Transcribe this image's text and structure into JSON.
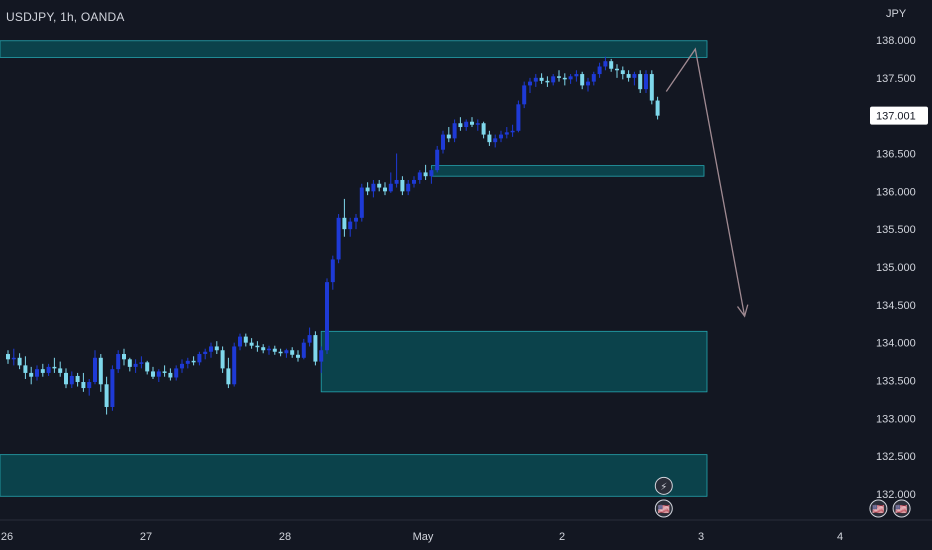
{
  "header": {
    "symbol_title": "USDJPY, 1h, OANDA",
    "currency": "JPY"
  },
  "chart_data": {
    "type": "candlestick",
    "symbol": "USDJPY",
    "timeframe": "1h",
    "broker": "OANDA",
    "y_ticks": [
      "138.000",
      "137.500",
      "137.000",
      "136.500",
      "136.000",
      "135.500",
      "135.000",
      "134.500",
      "134.000",
      "133.500",
      "133.000",
      "132.500",
      "132.000"
    ],
    "ylim": [
      131.75,
      138.35
    ],
    "current_price": "137.001",
    "x_ticks": [
      "26",
      "27",
      "28",
      "May",
      "2",
      "3",
      "4"
    ],
    "x_tick_index": [
      0,
      24,
      48,
      72,
      96,
      120,
      144
    ],
    "zones": [
      {
        "name": "top-resistance-zone",
        "i_start": -2,
        "i_end": 122,
        "y_low": 137.77,
        "y_high": 137.99
      },
      {
        "name": "mid-demand-zone",
        "i_start": 73,
        "i_end": 120,
        "y_low": 136.2,
        "y_high": 136.34
      },
      {
        "name": "lower-demand-zone",
        "i_start": 54,
        "i_end": 122,
        "y_low": 133.35,
        "y_high": 134.15
      },
      {
        "name": "bottom-demand-zone",
        "i_start": -2,
        "i_end": 122,
        "y_low": 131.97,
        "y_high": 132.52
      }
    ],
    "projection_path": [
      {
        "i": 113.5,
        "y": 137.32
      },
      {
        "i": 118.5,
        "y": 137.88
      },
      {
        "i": 127,
        "y": 134.35
      }
    ],
    "colors": {
      "up": "#1e3ad6",
      "down": "#7fd8ec",
      "zone_fill": "#0b4a52",
      "zone_border": "#25a6b0",
      "arrow": "#a08a92",
      "background": "#131722",
      "price_tag": "#ffffff"
    },
    "candles_ohlc": [
      [
        133.85,
        133.9,
        133.72,
        133.78
      ],
      [
        133.78,
        133.92,
        133.7,
        133.8
      ],
      [
        133.8,
        133.86,
        133.65,
        133.7
      ],
      [
        133.7,
        133.82,
        133.52,
        133.6
      ],
      [
        133.6,
        133.68,
        133.45,
        133.55
      ],
      [
        133.55,
        133.7,
        133.5,
        133.65
      ],
      [
        133.65,
        133.72,
        133.55,
        133.6
      ],
      [
        133.6,
        133.72,
        133.56,
        133.68
      ],
      [
        133.68,
        133.8,
        133.6,
        133.66
      ],
      [
        133.66,
        133.75,
        133.55,
        133.6
      ],
      [
        133.6,
        133.66,
        133.4,
        133.45
      ],
      [
        133.45,
        133.62,
        133.4,
        133.56
      ],
      [
        133.56,
        133.6,
        133.42,
        133.48
      ],
      [
        133.48,
        133.6,
        133.35,
        133.4
      ],
      [
        133.4,
        133.52,
        133.3,
        133.48
      ],
      [
        133.48,
        133.9,
        133.45,
        133.8
      ],
      [
        133.8,
        133.85,
        133.35,
        133.45
      ],
      [
        133.45,
        133.55,
        133.05,
        133.15
      ],
      [
        133.15,
        133.7,
        133.1,
        133.65
      ],
      [
        133.65,
        133.9,
        133.6,
        133.85
      ],
      [
        133.85,
        133.92,
        133.7,
        133.78
      ],
      [
        133.78,
        133.8,
        133.62,
        133.68
      ],
      [
        133.68,
        133.78,
        133.6,
        133.72
      ],
      [
        133.72,
        133.82,
        133.66,
        133.74
      ],
      [
        133.74,
        133.76,
        133.58,
        133.62
      ],
      [
        133.62,
        133.68,
        133.52,
        133.55
      ],
      [
        133.55,
        133.65,
        133.48,
        133.62
      ],
      [
        133.62,
        133.7,
        133.55,
        133.6
      ],
      [
        133.6,
        133.66,
        133.5,
        133.54
      ],
      [
        133.54,
        133.7,
        133.5,
        133.66
      ],
      [
        133.66,
        133.78,
        133.6,
        133.72
      ],
      [
        133.72,
        133.8,
        133.66,
        133.76
      ],
      [
        133.76,
        133.82,
        133.7,
        133.74
      ],
      [
        133.74,
        133.88,
        133.7,
        133.85
      ],
      [
        133.85,
        133.92,
        133.78,
        133.88
      ],
      [
        133.88,
        134.0,
        133.8,
        133.95
      ],
      [
        133.95,
        134.02,
        133.85,
        133.9
      ],
      [
        133.9,
        133.95,
        133.6,
        133.66
      ],
      [
        133.66,
        133.8,
        133.4,
        133.45
      ],
      [
        133.45,
        134.0,
        133.42,
        133.95
      ],
      [
        133.95,
        134.12,
        133.9,
        134.08
      ],
      [
        134.08,
        134.12,
        133.95,
        134.0
      ],
      [
        134.0,
        134.06,
        133.92,
        133.96
      ],
      [
        133.96,
        134.02,
        133.88,
        133.94
      ],
      [
        133.94,
        133.98,
        133.86,
        133.9
      ],
      [
        133.9,
        133.96,
        133.84,
        133.92
      ],
      [
        133.92,
        133.96,
        133.84,
        133.88
      ],
      [
        133.88,
        133.92,
        133.82,
        133.86
      ],
      [
        133.86,
        133.92,
        133.8,
        133.9
      ],
      [
        133.9,
        133.94,
        133.8,
        133.84
      ],
      [
        133.84,
        133.9,
        133.75,
        133.8
      ],
      [
        133.8,
        134.05,
        133.78,
        134.0
      ],
      [
        134.0,
        134.2,
        133.95,
        134.1
      ],
      [
        134.1,
        134.15,
        133.7,
        133.75
      ],
      [
        133.75,
        133.95,
        133.6,
        133.9
      ],
      [
        133.9,
        134.85,
        133.85,
        134.8
      ],
      [
        134.8,
        135.15,
        134.7,
        135.1
      ],
      [
        135.1,
        135.7,
        135.05,
        135.65
      ],
      [
        135.65,
        135.9,
        135.4,
        135.5
      ],
      [
        135.5,
        135.65,
        135.4,
        135.6
      ],
      [
        135.6,
        135.7,
        135.5,
        135.65
      ],
      [
        135.65,
        136.1,
        135.6,
        136.05
      ],
      [
        136.05,
        136.12,
        135.95,
        136.0
      ],
      [
        136.0,
        136.15,
        135.92,
        136.1
      ],
      [
        136.1,
        136.15,
        136.0,
        136.05
      ],
      [
        136.05,
        136.12,
        135.95,
        136.0
      ],
      [
        136.0,
        136.25,
        135.98,
        136.1
      ],
      [
        136.1,
        136.5,
        136.05,
        136.15
      ],
      [
        136.15,
        136.2,
        135.95,
        136.0
      ],
      [
        136.0,
        136.15,
        135.95,
        136.1
      ],
      [
        136.1,
        136.2,
        136.05,
        136.15
      ],
      [
        136.15,
        136.28,
        136.1,
        136.25
      ],
      [
        136.25,
        136.35,
        136.15,
        136.2
      ],
      [
        136.2,
        136.3,
        136.1,
        136.28
      ],
      [
        136.28,
        136.6,
        136.25,
        136.55
      ],
      [
        136.55,
        136.8,
        136.5,
        136.75
      ],
      [
        136.75,
        136.85,
        136.65,
        136.7
      ],
      [
        136.7,
        136.95,
        136.65,
        136.9
      ],
      [
        136.9,
        136.98,
        136.8,
        136.85
      ],
      [
        136.85,
        136.95,
        136.8,
        136.92
      ],
      [
        136.92,
        136.98,
        136.85,
        136.88
      ],
      [
        136.88,
        136.95,
        136.8,
        136.9
      ],
      [
        136.9,
        136.92,
        136.7,
        136.75
      ],
      [
        136.75,
        136.8,
        136.6,
        136.65
      ],
      [
        136.65,
        136.75,
        136.58,
        136.7
      ],
      [
        136.7,
        136.8,
        136.65,
        136.75
      ],
      [
        136.75,
        136.85,
        136.7,
        136.78
      ],
      [
        136.78,
        136.88,
        136.72,
        136.8
      ],
      [
        136.8,
        137.2,
        136.78,
        137.15
      ],
      [
        137.15,
        137.45,
        137.1,
        137.4
      ],
      [
        137.4,
        137.5,
        137.3,
        137.45
      ],
      [
        137.45,
        137.55,
        137.38,
        137.5
      ],
      [
        137.5,
        137.56,
        137.42,
        137.46
      ],
      [
        137.46,
        137.52,
        137.38,
        137.44
      ],
      [
        137.44,
        137.55,
        137.4,
        137.52
      ],
      [
        137.52,
        137.6,
        137.45,
        137.5
      ],
      [
        137.5,
        137.56,
        137.4,
        137.48
      ],
      [
        137.48,
        137.55,
        137.42,
        137.52
      ],
      [
        137.52,
        137.6,
        137.45,
        137.55
      ],
      [
        137.55,
        137.58,
        137.35,
        137.4
      ],
      [
        137.4,
        137.5,
        137.32,
        137.45
      ],
      [
        137.45,
        137.58,
        137.4,
        137.55
      ],
      [
        137.55,
        137.7,
        137.5,
        137.65
      ],
      [
        137.65,
        137.78,
        137.6,
        137.72
      ],
      [
        137.72,
        137.75,
        137.58,
        137.62
      ],
      [
        137.62,
        137.68,
        137.5,
        137.6
      ],
      [
        137.6,
        137.65,
        137.48,
        137.55
      ],
      [
        137.55,
        137.6,
        137.45,
        137.5
      ],
      [
        137.5,
        137.58,
        137.4,
        137.55
      ],
      [
        137.55,
        137.6,
        137.3,
        137.35
      ],
      [
        137.35,
        137.6,
        137.3,
        137.55
      ],
      [
        137.55,
        137.6,
        137.15,
        137.2
      ],
      [
        137.2,
        137.25,
        136.95,
        137.0
      ]
    ]
  },
  "event_icons": [
    {
      "name": "lightning-event-icon",
      "i": 101,
      "y": 132.28,
      "glyph": "⚡"
    },
    {
      "name": "us-flag-event-icon",
      "i": 101,
      "y": 131.98,
      "glyph": "🇺🇸"
    },
    {
      "name": "us-flag-event-icon-2",
      "i": 138,
      "y": 131.98,
      "glyph": "🇺🇸"
    },
    {
      "name": "us-flag-event-icon-3",
      "i": 142,
      "y": 131.98,
      "glyph": "🇺🇸"
    }
  ]
}
